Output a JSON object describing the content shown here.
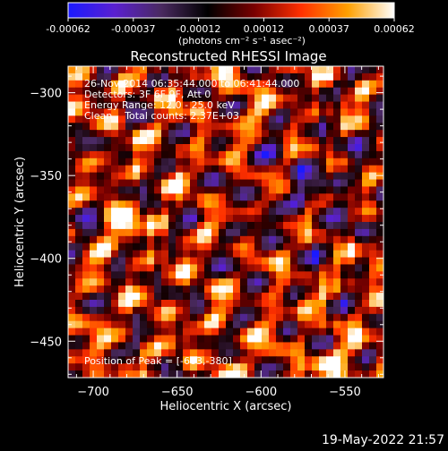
{
  "colorbar": {
    "ticks": [
      "-0.00062",
      "-0.00037",
      "-0.00012",
      "0.00012",
      "0.00037",
      "0.00062"
    ],
    "unit_label": "(photons cm⁻² s⁻¹ asec⁻²)",
    "colors": [
      "#1a1aff",
      "#5a20d0",
      "#4a2a60",
      "#000000",
      "#7a0000",
      "#ff3000",
      "#ffa000",
      "#ffffff"
    ]
  },
  "image": {
    "title": "Reconstructed RHESSI Image",
    "info_lines": [
      "26-Nov-2014 06:35:44.000 to 06:41:44.000",
      "Detectors: 3F 6F 9F, Att 0",
      "Energy Range: 12.0 - 25.0 keV",
      "Clean    Total counts: 2.37E+03"
    ],
    "peak_label": "Position of Peak = [-683,-380]",
    "peak": [
      -683,
      -380
    ]
  },
  "axes": {
    "x_label": "Heliocentric X (arcsec)",
    "y_label": "Heliocentric Y (arcsec)",
    "x_ticks": [
      -700,
      -650,
      -600,
      -550
    ],
    "y_ticks": [
      -300,
      -350,
      -400,
      -450
    ],
    "x_tick_labels": [
      "−700",
      "−650",
      "−600",
      "−550"
    ],
    "y_tick_labels": [
      "−300",
      "−350",
      "−400",
      "−450"
    ],
    "xlim": [
      -715,
      -527
    ],
    "ylim": [
      -472,
      -284
    ]
  },
  "footer": {
    "timestamp": "19-May-2022 21:57"
  }
}
